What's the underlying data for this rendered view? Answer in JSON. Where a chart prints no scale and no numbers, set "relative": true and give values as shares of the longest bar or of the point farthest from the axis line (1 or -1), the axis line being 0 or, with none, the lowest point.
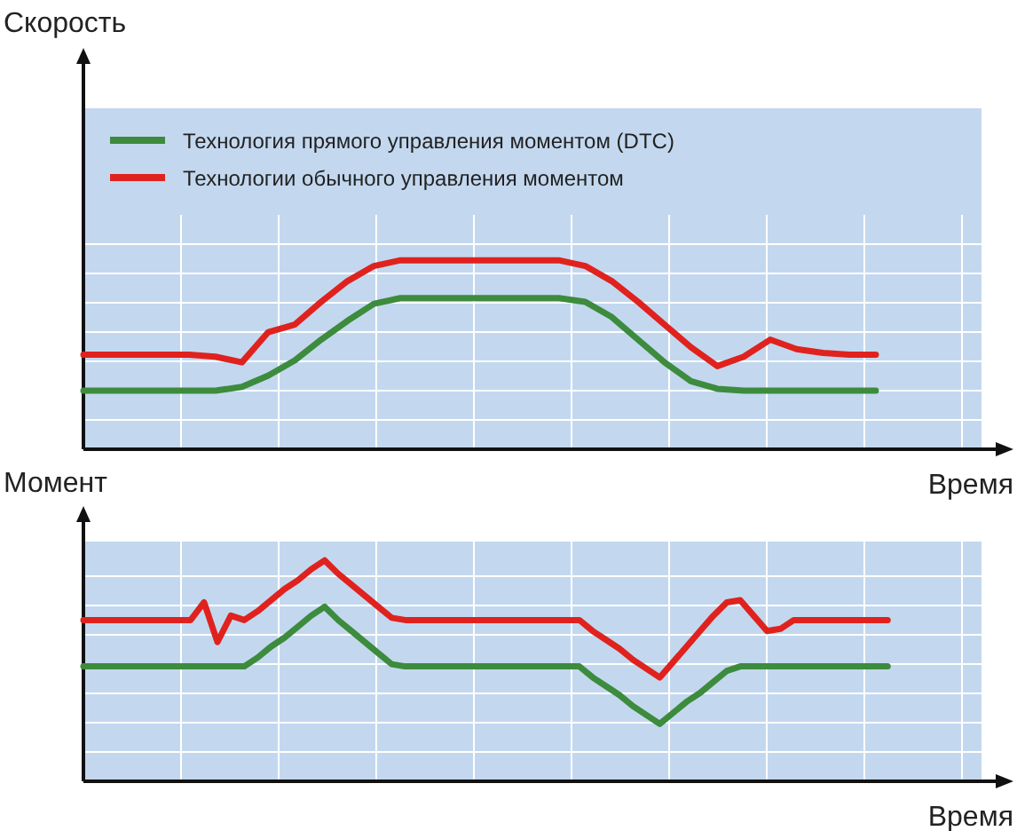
{
  "chart_data": [
    {
      "type": "line",
      "ylabel": "Скорость",
      "xlabel": "Время",
      "relative": true,
      "grid": true,
      "legend": "top left",
      "categories": [
        null,
        null,
        null,
        null,
        null,
        null,
        null,
        null,
        null,
        null,
        null,
        null,
        null,
        null,
        null,
        null,
        null,
        null,
        null,
        null,
        null,
        null,
        null,
        null,
        null,
        null,
        null,
        null,
        null,
        null,
        null,
        null,
        null,
        null
      ],
      "series": [
        {
          "name": "Технология прямого управления моментом (DTC)",
          "color": "#3d8b3d",
          "values": [
            0.31,
            0.31,
            0.31,
            0.31,
            0.31,
            0.31,
            0.33,
            0.39,
            0.47,
            0.58,
            0.68,
            0.77,
            0.8,
            0.8,
            0.8,
            0.8,
            0.8,
            0.8,
            0.8,
            0.78,
            0.7,
            0.58,
            0.46,
            0.36,
            0.32,
            0.31,
            0.31,
            0.31,
            0.31,
            0.31,
            0.31,
            null,
            null,
            null
          ]
        },
        {
          "name": "Технологии обычного управления моментом",
          "color": "#e0221e",
          "values": [
            0.5,
            0.5,
            0.5,
            0.5,
            0.5,
            0.49,
            0.46,
            0.62,
            0.66,
            0.78,
            0.89,
            0.97,
            1,
            1,
            1,
            1,
            1,
            1,
            1,
            0.97,
            0.89,
            0.78,
            0.66,
            0.54,
            0.44,
            0.49,
            0.58,
            0.53,
            0.51,
            0.5,
            0.5,
            null,
            null,
            null
          ]
        }
      ]
    },
    {
      "type": "line",
      "ylabel": "Момент",
      "xlabel": "Время",
      "relative": true,
      "grid": true,
      "categories": [
        null,
        null,
        null,
        null,
        null,
        null,
        null,
        null,
        null,
        null,
        null,
        null,
        null,
        null,
        null,
        null,
        null,
        null,
        null,
        null,
        null,
        null,
        null,
        null,
        null,
        null,
        null,
        null,
        null,
        null,
        null,
        null,
        null,
        null,
        null,
        null,
        null,
        null,
        null,
        null,
        null,
        null,
        null,
        null,
        null,
        null,
        null,
        null,
        null,
        null,
        null,
        null,
        null,
        null,
        null,
        null,
        null,
        null,
        null,
        null,
        null,
        null,
        null,
        null,
        null,
        null,
        null
      ],
      "series": [
        {
          "color": "#3d8b3d",
          "values": [
            0.52,
            0.52,
            0.52,
            0.52,
            0.52,
            0.52,
            0.52,
            0.52,
            0.52,
            0.52,
            0.52,
            0.52,
            0.52,
            0.56,
            0.61,
            0.65,
            0.7,
            0.75,
            0.79,
            0.73,
            0.68,
            0.63,
            0.58,
            0.53,
            0.52,
            0.52,
            0.52,
            0.52,
            0.52,
            0.52,
            0.52,
            0.52,
            0.52,
            0.52,
            0.52,
            0.52,
            0.52,
            0.52,
            0.47,
            0.43,
            0.39,
            0.34,
            0.3,
            0.26,
            0.31,
            0.36,
            0.4,
            0.45,
            0.5,
            0.52,
            0.52,
            0.52,
            0.52,
            0.52,
            0.52,
            0.52,
            0.52,
            0.52,
            0.52,
            0.52,
            0.52,
            null,
            null,
            null,
            null,
            null,
            null
          ]
        },
        {
          "color": "#e0221e",
          "values": [
            0.73,
            0.73,
            0.73,
            0.73,
            0.73,
            0.73,
            0.73,
            0.73,
            0.73,
            0.81,
            0.63,
            0.75,
            0.73,
            0.77,
            0.82,
            0.87,
            0.91,
            0.96,
            1,
            0.94,
            0.89,
            0.84,
            0.79,
            0.74,
            0.73,
            0.73,
            0.73,
            0.73,
            0.73,
            0.73,
            0.73,
            0.73,
            0.73,
            0.73,
            0.73,
            0.73,
            0.73,
            0.73,
            0.68,
            0.64,
            0.6,
            0.55,
            0.51,
            0.47,
            0.54,
            0.61,
            0.68,
            0.75,
            0.81,
            0.82,
            0.75,
            0.68,
            0.69,
            0.73,
            0.73,
            0.73,
            0.73,
            0.73,
            0.73,
            0.73,
            0.73,
            null,
            null,
            null,
            null,
            null,
            null
          ]
        }
      ]
    }
  ]
}
